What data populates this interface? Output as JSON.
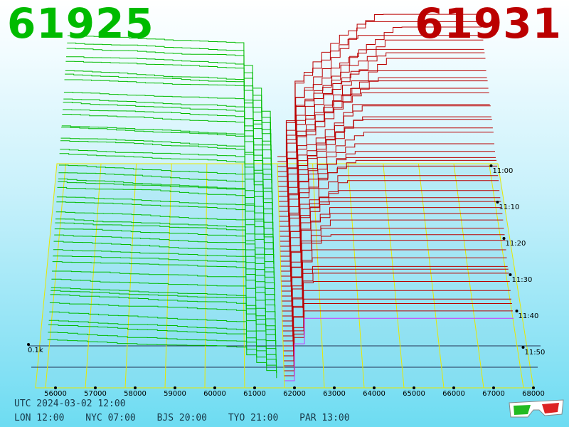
{
  "header": {
    "bid_price": "61925",
    "ask_price": "61931"
  },
  "footer": {
    "utc": "UTC 2024-03-02 12:00",
    "zones": [
      "LON 12:00",
      "NYC 07:00",
      "BJS 20:00",
      "TYO 21:00",
      "PAR 13:00"
    ]
  },
  "icons": {
    "glasses": "3d-glasses-icon"
  },
  "colors": {
    "bid": "#00bb00",
    "ask": "#bb0000",
    "grid": "#e8e800",
    "latest": "#cc33ff"
  },
  "chart_data": {
    "type": "area",
    "x_ticks": [
      "56000",
      "57000",
      "58000",
      "59000",
      "60000",
      "61000",
      "62000",
      "63000",
      "64000",
      "65000",
      "66000",
      "67000",
      "68000"
    ],
    "xlim": [
      55750,
      68250
    ],
    "time_labels": [
      "11:00",
      "11:10",
      "11:20",
      "11:30",
      "11:40",
      "11:50"
    ],
    "depth_label": "0.1k",
    "mid_price": 62000,
    "series": [
      {
        "side": "bid",
        "color": "#00bb00"
      },
      {
        "side": "ask",
        "color": "#bb0000"
      }
    ]
  }
}
